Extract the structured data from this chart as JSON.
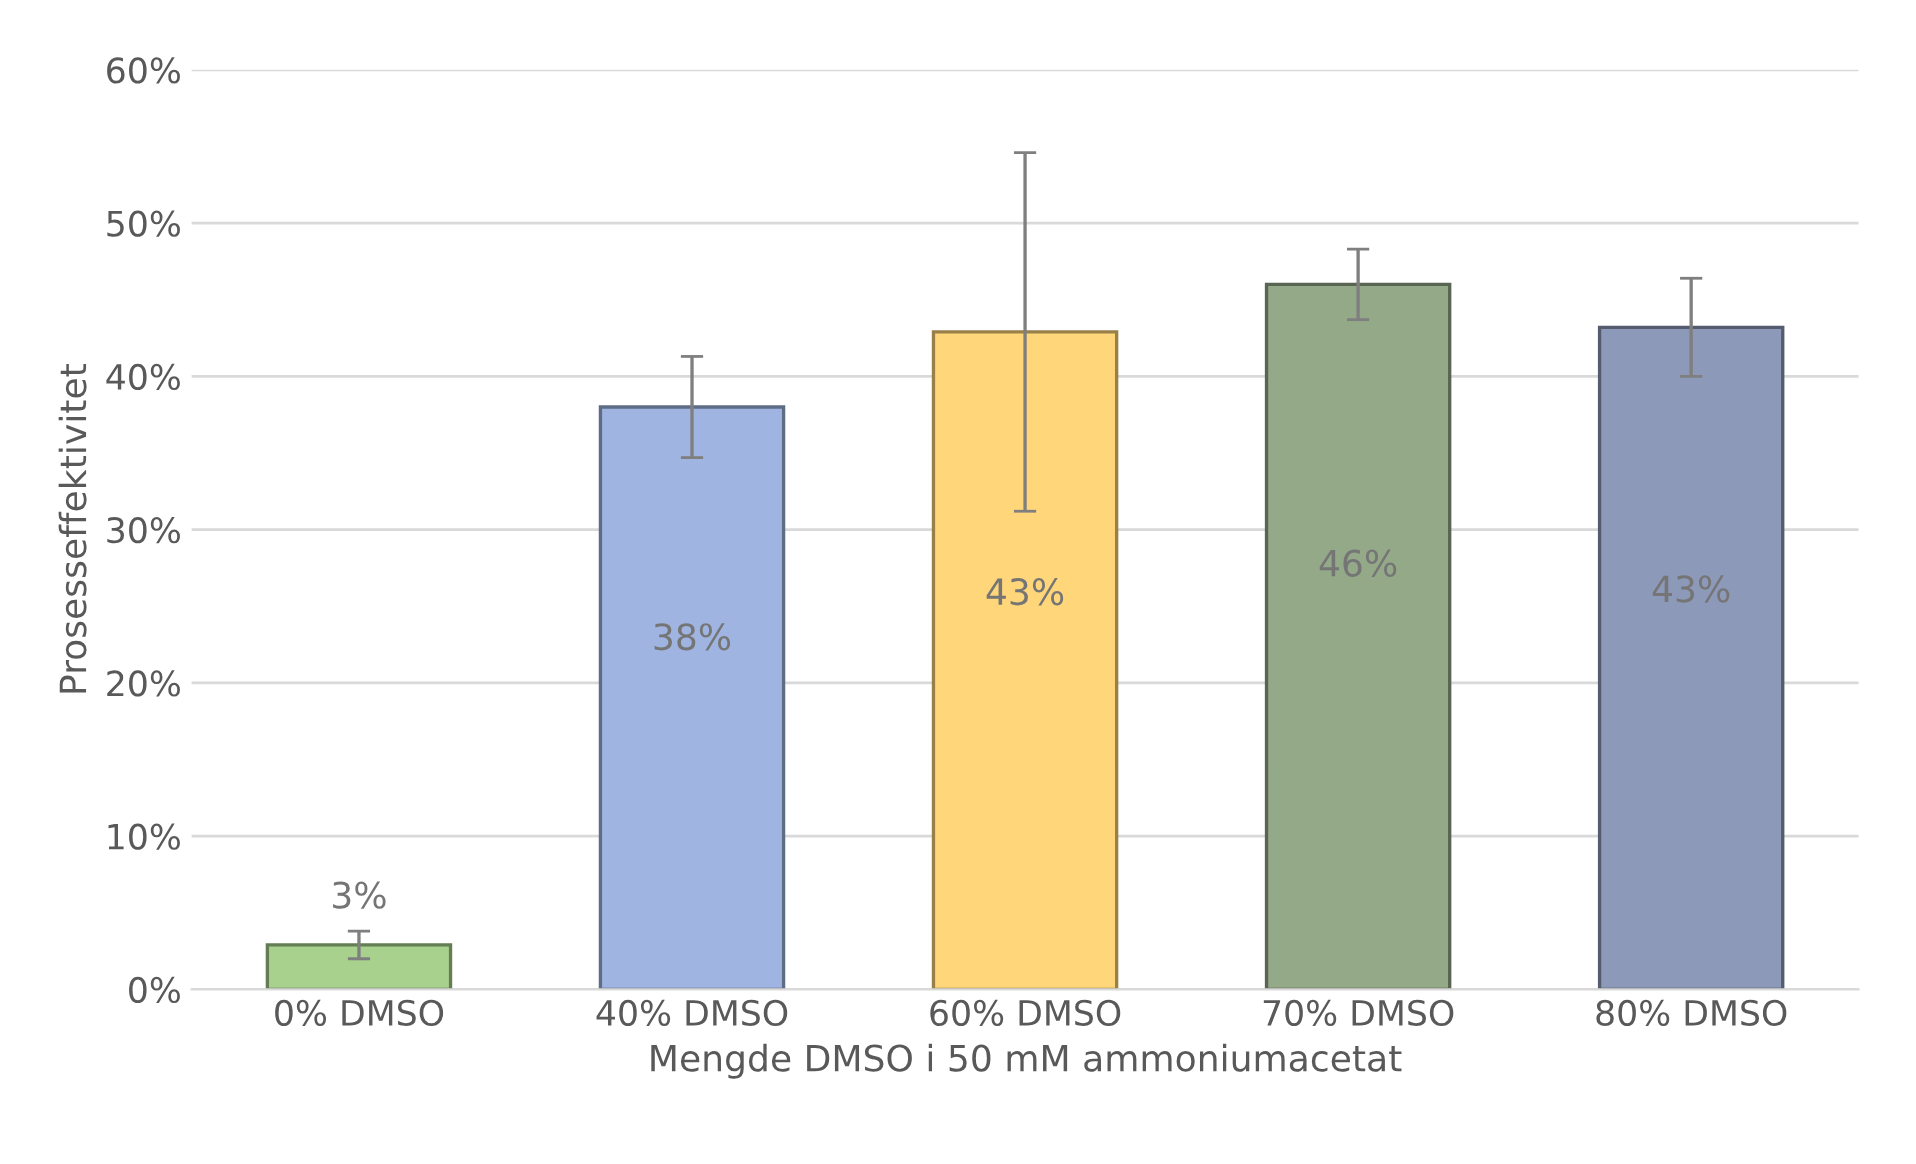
{
  "chart_data": {
    "type": "bar",
    "xlabel": "Mengde DMSO i 50 mM ammoniumacetat",
    "ylabel": "Prosesseffektivitet",
    "categories": [
      "0% DMSO",
      "40% DMSO",
      "60% DMSO",
      "70% DMSO",
      "80% DMSO"
    ],
    "values": [
      2.9,
      38.0,
      42.9,
      46.0,
      43.2
    ],
    "colors": [
      "#a9d18e",
      "#9fb4e0",
      "#ffd67a",
      "#93a988",
      "#8d99b8"
    ],
    "errors": [
      0.9,
      3.3,
      11.7,
      2.3,
      3.2
    ],
    "value_labels": [
      "3%",
      "38%",
      "43%",
      "46%",
      "43%"
    ],
    "ylim": [
      0,
      60
    ],
    "yticks": [
      {
        "value": 0,
        "label": "0%"
      },
      {
        "value": 10,
        "label": "10%"
      },
      {
        "value": 20,
        "label": "20%"
      },
      {
        "value": 30,
        "label": "30%"
      },
      {
        "value": 40,
        "label": "40%"
      },
      {
        "value": 50,
        "label": "50%"
      },
      {
        "value": 60,
        "label": "60%"
      }
    ],
    "grid": "y",
    "legend": false
  }
}
